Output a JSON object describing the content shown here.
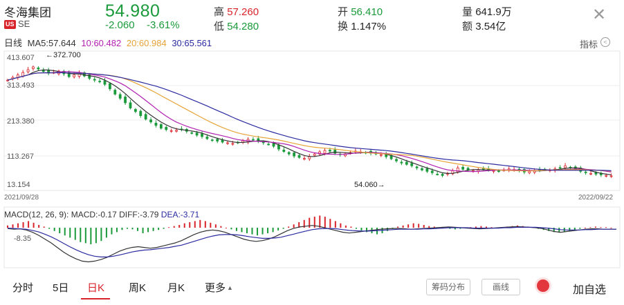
{
  "header": {
    "name": "冬海集团",
    "badge": "US",
    "ticker": "SE",
    "price": "54.980",
    "change": "-2.060",
    "change_pct": "-3.61%",
    "high_label": "高",
    "high_value": "57.260",
    "low_label": "低",
    "low_value": "54.280",
    "open_label": "开",
    "open_value": "56.410",
    "turnover_label": "换",
    "turnover_value": "1.147%",
    "volume_label": "量",
    "volume_value": "641.9万",
    "amount_label": "额",
    "amount_value": "3.54亿",
    "close_icon": "close-icon"
  },
  "ma_bar": {
    "period": "日线",
    "ma5": "MA5:57.644",
    "ma10": "10:60.482",
    "ma20": "20:60.984",
    "ma30": "30:65.561",
    "indicator_label": "指标",
    "indicator_icon": "chevron-left-circle-icon"
  },
  "colors": {
    "up": "#d9232a",
    "down": "#1a9a3a",
    "ma5": "#333333",
    "ma10": "#b01fb0",
    "ma20": "#e6a437",
    "ma30": "#2a2aa0"
  },
  "chart_data": {
    "type": "candlestick",
    "y_ticks": [
      "413.607",
      "313.493",
      "213.380",
      "113.267",
      "13.154"
    ],
    "ylim": [
      13.154,
      413.607
    ],
    "x_start_label": "2021/09/28",
    "x_end_label": "2022/09/22",
    "max_annotation": "←372.700",
    "min_annotation": "54.060→",
    "close_series": [
      330,
      338,
      345,
      352,
      360,
      368,
      362,
      355,
      350,
      352,
      356,
      348,
      340,
      345,
      350,
      342,
      335,
      330,
      325,
      318,
      305,
      290,
      278,
      265,
      250,
      240,
      228,
      218,
      210,
      200,
      192,
      188,
      185,
      186,
      188,
      183,
      178,
      172,
      168,
      162,
      158,
      155,
      152,
      150,
      148,
      150,
      156,
      160,
      158,
      154,
      150,
      146,
      140,
      132,
      125,
      118,
      112,
      108,
      105,
      110,
      118,
      124,
      128,
      126,
      120,
      116,
      118,
      122,
      126,
      124,
      122,
      120,
      118,
      116,
      110,
      104,
      98,
      92,
      88,
      84,
      78,
      72,
      68,
      64,
      60,
      56,
      62,
      70,
      78,
      74,
      72,
      70,
      72,
      74,
      72,
      70,
      68,
      72,
      75,
      73,
      70,
      66,
      68,
      70,
      72,
      74,
      72,
      75,
      78,
      84,
      80,
      74,
      68,
      64,
      62,
      60,
      58,
      56,
      55
    ]
  },
  "macd": {
    "label": "MACD(12, 26, 9):",
    "macd": "MACD:-0.17",
    "diff": "DIFF:-3.79",
    "dea": "DEA:-3.71",
    "y_tick": "-8.35",
    "hist": [
      4,
      6,
      8,
      10,
      12,
      9,
      5,
      2,
      -2,
      -6,
      -10,
      -14,
      -18,
      -22,
      -26,
      -28,
      -30,
      -28,
      -24,
      -18,
      -12,
      -8,
      -4,
      -2,
      -3,
      -6,
      -10,
      -8,
      -6,
      -4,
      -2,
      1,
      3,
      5,
      8,
      10,
      12,
      14,
      12,
      9,
      6,
      3,
      0,
      -3,
      -6,
      -8,
      -10,
      -12,
      -14,
      -12,
      -10,
      -8,
      -5,
      -2,
      2,
      6,
      10,
      14,
      18,
      20,
      22,
      20,
      16,
      12,
      8,
      4,
      2,
      -2,
      -5,
      -8,
      -10,
      -12,
      -10,
      -6,
      -2,
      2,
      4,
      6,
      8,
      7,
      5,
      3,
      2,
      1,
      -1,
      -2,
      -3,
      -2,
      -1,
      1,
      2,
      3,
      2,
      1,
      0,
      1,
      2,
      3,
      4,
      3,
      2,
      1,
      -2,
      -4,
      -6,
      -8,
      -9,
      -8,
      -6,
      -4,
      -2,
      0,
      1,
      2,
      1,
      1,
      0
    ],
    "diff_series": [
      -2,
      -4,
      -3,
      -6,
      -12,
      -20,
      -30,
      -40,
      -52,
      -64,
      -74,
      -82,
      -88,
      -90,
      -88,
      -84,
      -78,
      -70,
      -62,
      -56,
      -52,
      -50,
      -52,
      -54,
      -52,
      -48,
      -44,
      -40,
      -34,
      -26,
      -18,
      -12,
      -8,
      -6,
      -8,
      -12,
      -18,
      -24,
      -30,
      -34,
      -36,
      -34,
      -30,
      -24,
      -16,
      -8,
      -2,
      2,
      4,
      6,
      4,
      0,
      -4,
      -8,
      -12,
      -14,
      -12,
      -10,
      -8,
      -6,
      -4,
      -3,
      -2,
      -2,
      -3,
      -4,
      -3,
      -2,
      -1,
      0,
      1,
      2,
      1,
      0,
      -1,
      -2,
      -3,
      -2,
      -1,
      0,
      1,
      2,
      3,
      2,
      1,
      0,
      -2,
      -6,
      -10,
      -12,
      -10,
      -8,
      -6,
      -4,
      -3,
      -3,
      -4,
      -4,
      -4
    ],
    "dea_series": [
      -1,
      -2,
      -3,
      -4,
      -7,
      -11,
      -17,
      -24,
      -32,
      -41,
      -50,
      -58,
      -65,
      -71,
      -75,
      -77,
      -77,
      -75,
      -72,
      -68,
      -64,
      -61,
      -59,
      -58,
      -56,
      -54,
      -52,
      -49,
      -46,
      -41,
      -36,
      -31,
      -26,
      -22,
      -19,
      -18,
      -18,
      -19,
      -21,
      -24,
      -26,
      -28,
      -28,
      -27,
      -25,
      -21,
      -17,
      -13,
      -9,
      -5,
      -3,
      -2,
      -2,
      -3,
      -5,
      -7,
      -8,
      -9,
      -9,
      -8,
      -7,
      -6,
      -5,
      -4,
      -4,
      -4,
      -4,
      -3,
      -3,
      -2,
      -1,
      0,
      0,
      0,
      0,
      -1,
      -1,
      -1,
      -1,
      -1,
      0,
      0,
      1,
      1,
      1,
      1,
      0,
      -1,
      -3,
      -5,
      -6,
      -6,
      -6,
      -5,
      -5,
      -4,
      -4,
      -4,
      -4
    ]
  },
  "tabs": [
    "分时",
    "5日",
    "日K",
    "周K",
    "月K",
    "更多"
  ],
  "active_tab": 2,
  "more_arrow_icon": "caret-up-icon",
  "buttons": {
    "chips": "筹码分布",
    "draw": "画线",
    "add_fav": "加自选",
    "record_icon": "record-dot-icon"
  }
}
